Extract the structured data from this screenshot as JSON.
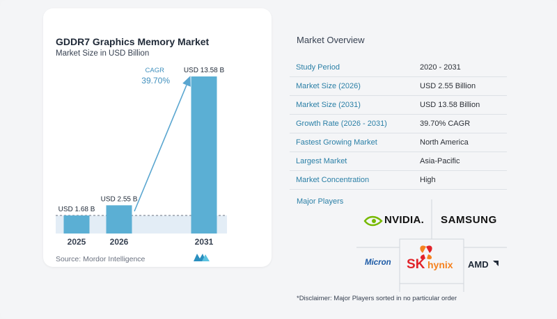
{
  "chart_title": "GDDR7 Graphics Memory Market",
  "chart_subtitle": "Market Size in USD Billion",
  "chart_data": {
    "type": "bar",
    "categories": [
      "2025",
      "2026",
      "2031"
    ],
    "values": [
      1.68,
      2.55,
      13.58
    ],
    "value_labels": [
      "USD 1.68 B",
      "USD 2.55 B",
      "USD 13.58 B"
    ],
    "title": "GDDR7 Graphics Memory Market",
    "subtitle": "Market Size in USD Billion",
    "ylim": [
      0,
      13.58
    ],
    "annotation": {
      "label": "CAGR",
      "value": "39.70%"
    },
    "colors": {
      "bar": "#5bafd4",
      "bar_light": "#8ccbe6",
      "band": "#e3edf6",
      "arrow": "#5aa6d0",
      "baseline_dash": "#6b7280"
    }
  },
  "source": "Source:  Mordor Intelligence",
  "overview": {
    "title": "Market Overview",
    "rows": [
      {
        "key": "Study Period",
        "value": "2020 - 2031"
      },
      {
        "key": "Market Size (2026)",
        "value": "USD 2.55 Billion"
      },
      {
        "key": "Market Size (2031)",
        "value": "USD 13.58 Billion"
      },
      {
        "key": "Growth Rate (2026 - 2031)",
        "value": "39.70% CAGR"
      },
      {
        "key": "Fastest Growing Market",
        "value": "North America"
      },
      {
        "key": "Largest Market",
        "value": "Asia-Pacific"
      },
      {
        "key": "Market Concentration",
        "value": "High"
      }
    ]
  },
  "players": {
    "title": "Major Players",
    "logos": {
      "nvidia": "NVIDIA.",
      "samsung": "SAMSUNG",
      "micron": "Micron",
      "sk": "SK",
      "hynix": "hynix",
      "amd": "AMD"
    },
    "colors": {
      "nvidia_green": "#76b900",
      "sk_red": "#e1232a",
      "sk_orange": "#f58220",
      "micron_blue": "#1c5aa6"
    }
  },
  "disclaimer": "*Disclaimer: Major Players sorted in no particular order"
}
